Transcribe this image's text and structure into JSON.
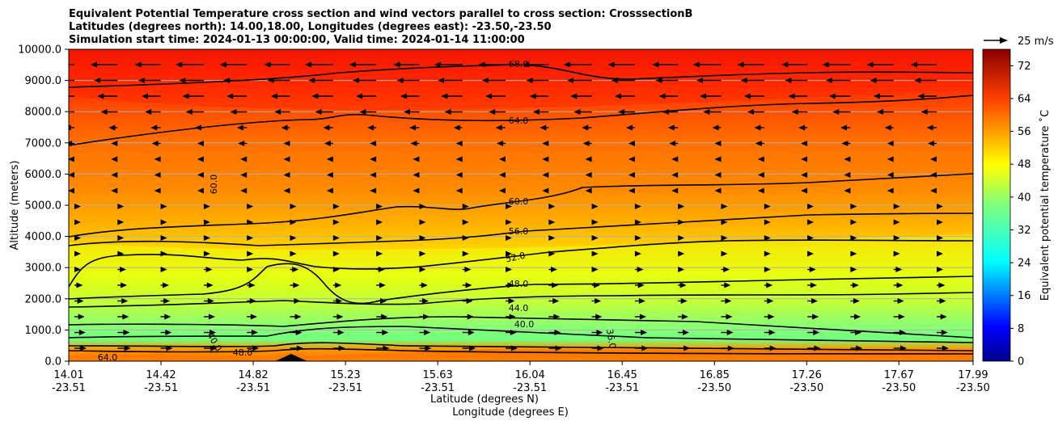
{
  "chart_data": {
    "type": "heatmap",
    "title_lines": [
      "Equivalent Potential Temperature cross section and wind vectors parallel to cross section: CrosssectionB",
      "Latitudes (degrees north): 14.00,18.00, Longitudes (degrees east): -23.50,-23.50",
      "Simulation start time: 2024-01-13 00:00:00, Valid time: 2024-01-14 11:00:00"
    ],
    "xlabel": "Latitude (degrees N)",
    "xlabel2": "Longitude (degrees E)",
    "ylabel": "Altitude (meters)",
    "x_ticks": [
      {
        "lat": "14.01",
        "lon": "-23.51"
      },
      {
        "lat": "14.42",
        "lon": "-23.51"
      },
      {
        "lat": "14.82",
        "lon": "-23.51"
      },
      {
        "lat": "15.23",
        "lon": "-23.51"
      },
      {
        "lat": "15.63",
        "lon": "-23.51"
      },
      {
        "lat": "16.04",
        "lon": "-23.51"
      },
      {
        "lat": "16.45",
        "lon": "-23.51"
      },
      {
        "lat": "16.85",
        "lon": "-23.50"
      },
      {
        "lat": "17.26",
        "lon": "-23.50"
      },
      {
        "lat": "17.67",
        "lon": "-23.50"
      },
      {
        "lat": "17.99",
        "lon": "-23.50"
      }
    ],
    "y_ticks": [
      "0.0",
      "1000.0",
      "2000.0",
      "3000.0",
      "4000.0",
      "5000.0",
      "6000.0",
      "7000.0",
      "8000.0",
      "9000.0",
      "10000.0"
    ],
    "ylim": [
      0,
      10000
    ],
    "grid": "horizontal",
    "colorbar": {
      "label": "Equivalent potential temperature ˚C",
      "ticks": [
        "0",
        "8",
        "16",
        "24",
        "32",
        "40",
        "48",
        "56",
        "64",
        "72"
      ],
      "range": [
        0,
        76
      ]
    },
    "wind_key": "25 m/s",
    "contour_labels": [
      "68.0",
      "64.0",
      "60.0",
      "56.0",
      "52.0",
      "48.0",
      "44.0",
      "40.0",
      "60.0",
      "36.0",
      "40.0",
      "48.0",
      "64.0"
    ]
  }
}
